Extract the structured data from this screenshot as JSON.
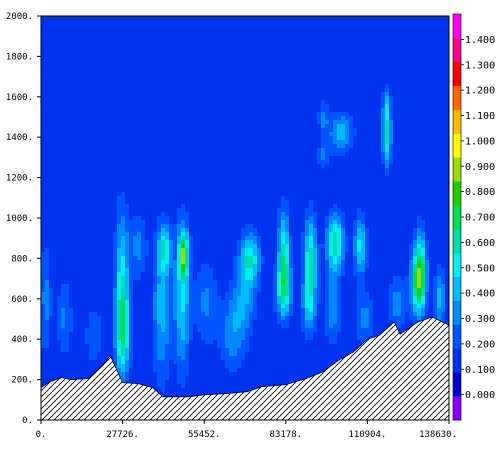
{
  "chart_data": {
    "type": "contour",
    "title": "",
    "xlabel": "",
    "ylabel": "",
    "xlim": [
      0,
      138630
    ],
    "ylim": [
      0,
      2000
    ],
    "x_ticks": [
      {
        "value": 0,
        "label": "0."
      },
      {
        "value": 27726,
        "label": "27726."
      },
      {
        "value": 55452,
        "label": "55452."
      },
      {
        "value": 83178,
        "label": "83178."
      },
      {
        "value": 110904,
        "label": "110904."
      },
      {
        "value": 138630,
        "label": "138630."
      }
    ],
    "y_ticks": [
      {
        "value": 0,
        "label": "0."
      },
      {
        "value": 200,
        "label": "200."
      },
      {
        "value": 400,
        "label": "400."
      },
      {
        "value": 600,
        "label": "600."
      },
      {
        "value": 800,
        "label": "800."
      },
      {
        "value": 1000,
        "label": "1000."
      },
      {
        "value": 1200,
        "label": "1200."
      },
      {
        "value": 1400,
        "label": "1400."
      },
      {
        "value": 1600,
        "label": "1600."
      },
      {
        "value": 1800,
        "label": "1800."
      },
      {
        "value": 2000,
        "label": "2000."
      }
    ],
    "colorbar": {
      "min": -0.1,
      "max": 1.5,
      "step": 0.1,
      "labels": [
        "0.000",
        "0.100",
        "0.200",
        "0.300",
        "0.400",
        "0.500",
        "0.600",
        "0.700",
        "0.800",
        "0.900",
        "1.000",
        "1.100",
        "1.200",
        "1.300",
        "1.400"
      ],
      "colors": [
        "#8800ff",
        "#0000cc",
        "#0033ee",
        "#0055ff",
        "#0088ff",
        "#00bbff",
        "#00eeee",
        "#00ddaa",
        "#00dd55",
        "#22cc00",
        "#99dd00",
        "#ffff00",
        "#ffbb00",
        "#ff6600",
        "#ff0000",
        "#ff0088",
        "#ff00ff"
      ]
    },
    "background_level": 0.1,
    "terrain": {
      "hatched": true,
      "profile": [
        {
          "x": 0,
          "y": 160
        },
        {
          "x": 3000,
          "y": 190
        },
        {
          "x": 7000,
          "y": 210
        },
        {
          "x": 10000,
          "y": 200
        },
        {
          "x": 16000,
          "y": 205
        },
        {
          "x": 21000,
          "y": 270
        },
        {
          "x": 23500,
          "y": 320
        },
        {
          "x": 27726,
          "y": 185
        },
        {
          "x": 33000,
          "y": 180
        },
        {
          "x": 38000,
          "y": 160
        },
        {
          "x": 41500,
          "y": 115
        },
        {
          "x": 50000,
          "y": 115
        },
        {
          "x": 55452,
          "y": 125
        },
        {
          "x": 62000,
          "y": 130
        },
        {
          "x": 70000,
          "y": 140
        },
        {
          "x": 75000,
          "y": 165
        },
        {
          "x": 83178,
          "y": 175
        },
        {
          "x": 90000,
          "y": 205
        },
        {
          "x": 96000,
          "y": 240
        },
        {
          "x": 101000,
          "y": 295
        },
        {
          "x": 106000,
          "y": 335
        },
        {
          "x": 110904,
          "y": 400
        },
        {
          "x": 115000,
          "y": 420
        },
        {
          "x": 120000,
          "y": 485
        },
        {
          "x": 122000,
          "y": 425
        },
        {
          "x": 128000,
          "y": 485
        },
        {
          "x": 133000,
          "y": 510
        },
        {
          "x": 138630,
          "y": 470
        }
      ]
    },
    "blobs": [
      {
        "x": 1500,
        "y": 600,
        "rx": 2000,
        "ry": 280,
        "peak": 0.24
      },
      {
        "x": 8000,
        "y": 500,
        "rx": 2600,
        "ry": 200,
        "peak": 0.22
      },
      {
        "x": 18000,
        "y": 420,
        "rx": 3000,
        "ry": 150,
        "peak": 0.2
      },
      {
        "x": 27500,
        "y": 640,
        "rx": 2300,
        "ry": 400,
        "peak": 0.48
      },
      {
        "x": 28000,
        "y": 420,
        "rx": 2800,
        "ry": 200,
        "peak": 0.32
      },
      {
        "x": 33000,
        "y": 860,
        "rx": 3000,
        "ry": 170,
        "peak": 0.24
      },
      {
        "x": 41000,
        "y": 560,
        "rx": 3200,
        "ry": 380,
        "peak": 0.34
      },
      {
        "x": 42000,
        "y": 850,
        "rx": 2000,
        "ry": 110,
        "peak": 0.4
      },
      {
        "x": 48000,
        "y": 620,
        "rx": 2600,
        "ry": 380,
        "peak": 0.42
      },
      {
        "x": 48500,
        "y": 820,
        "rx": 1600,
        "ry": 110,
        "peak": 0.56
      },
      {
        "x": 56000,
        "y": 580,
        "rx": 4000,
        "ry": 220,
        "peak": 0.22
      },
      {
        "x": 65000,
        "y": 420,
        "rx": 4500,
        "ry": 200,
        "peak": 0.24
      },
      {
        "x": 71000,
        "y": 800,
        "rx": 3500,
        "ry": 130,
        "peak": 0.48
      },
      {
        "x": 69000,
        "y": 590,
        "rx": 4000,
        "ry": 180,
        "peak": 0.26
      },
      {
        "x": 82500,
        "y": 810,
        "rx": 2000,
        "ry": 230,
        "peak": 0.55
      },
      {
        "x": 82500,
        "y": 630,
        "rx": 3000,
        "ry": 130,
        "peak": 0.36
      },
      {
        "x": 91500,
        "y": 800,
        "rx": 2200,
        "ry": 220,
        "peak": 0.52
      },
      {
        "x": 91000,
        "y": 560,
        "rx": 2500,
        "ry": 150,
        "peak": 0.3
      },
      {
        "x": 100000,
        "y": 880,
        "rx": 3000,
        "ry": 140,
        "peak": 0.58
      },
      {
        "x": 99000,
        "y": 560,
        "rx": 3000,
        "ry": 200,
        "peak": 0.26
      },
      {
        "x": 108500,
        "y": 860,
        "rx": 2200,
        "ry": 150,
        "peak": 0.44
      },
      {
        "x": 110000,
        "y": 500,
        "rx": 3500,
        "ry": 130,
        "peak": 0.24
      },
      {
        "x": 102000,
        "y": 1420,
        "rx": 4200,
        "ry": 100,
        "peak": 0.36
      },
      {
        "x": 96000,
        "y": 1500,
        "rx": 1800,
        "ry": 90,
        "peak": 0.22
      },
      {
        "x": 96000,
        "y": 1310,
        "rx": 2200,
        "ry": 70,
        "peak": 0.2
      },
      {
        "x": 117500,
        "y": 1400,
        "rx": 1500,
        "ry": 150,
        "peak": 0.52
      },
      {
        "x": 117500,
        "y": 1560,
        "rx": 1500,
        "ry": 90,
        "peak": 0.24
      },
      {
        "x": 128000,
        "y": 680,
        "rx": 2600,
        "ry": 170,
        "peak": 0.54
      },
      {
        "x": 129000,
        "y": 760,
        "rx": 2000,
        "ry": 200,
        "peak": 0.4
      },
      {
        "x": 121000,
        "y": 580,
        "rx": 3000,
        "ry": 130,
        "peak": 0.26
      },
      {
        "x": 135500,
        "y": 600,
        "rx": 1800,
        "ry": 160,
        "peak": 0.34
      },
      {
        "x": 30000,
        "y": 1960,
        "rx": 300,
        "ry": 80,
        "peak": 0.16
      },
      {
        "x": 46500,
        "y": 1320,
        "rx": 300,
        "ry": 30,
        "peak": 0.15
      }
    ]
  }
}
